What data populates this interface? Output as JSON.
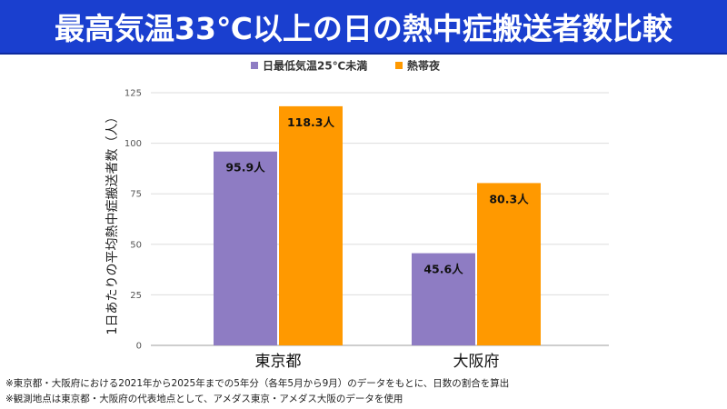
{
  "header": {
    "title": "最高気温33℃以上の日の熱中症搬送者数比較"
  },
  "notes": [
    "※東京都・大阪府における2021年から2025年までの5年分（各年5月から9月）のデータをもとに、日数の割合を算出",
    "※観測地点は東京都・大阪府の代表地点として、アメダス東京・アメダス大阪のデータを使用"
  ],
  "chart_data": {
    "type": "bar",
    "categories": [
      "東京都",
      "大阪府"
    ],
    "series": [
      {
        "name": "日最低気温25℃未満",
        "values": [
          95.9,
          45.6
        ],
        "labels": [
          "95.9人",
          "45.6人"
        ],
        "color": "#8e7cc3"
      },
      {
        "name": "熱帯夜",
        "values": [
          118.3,
          80.3
        ],
        "labels": [
          "118.3人",
          "80.3人"
        ],
        "color": "#ff9900"
      }
    ],
    "ylabel": "1日あたりの平均熱中症搬送者数（人）",
    "ylim": [
      0,
      125
    ],
    "yticks": [
      0,
      25,
      50,
      75,
      100,
      125
    ],
    "legend_position": "top-center",
    "grid": true
  }
}
